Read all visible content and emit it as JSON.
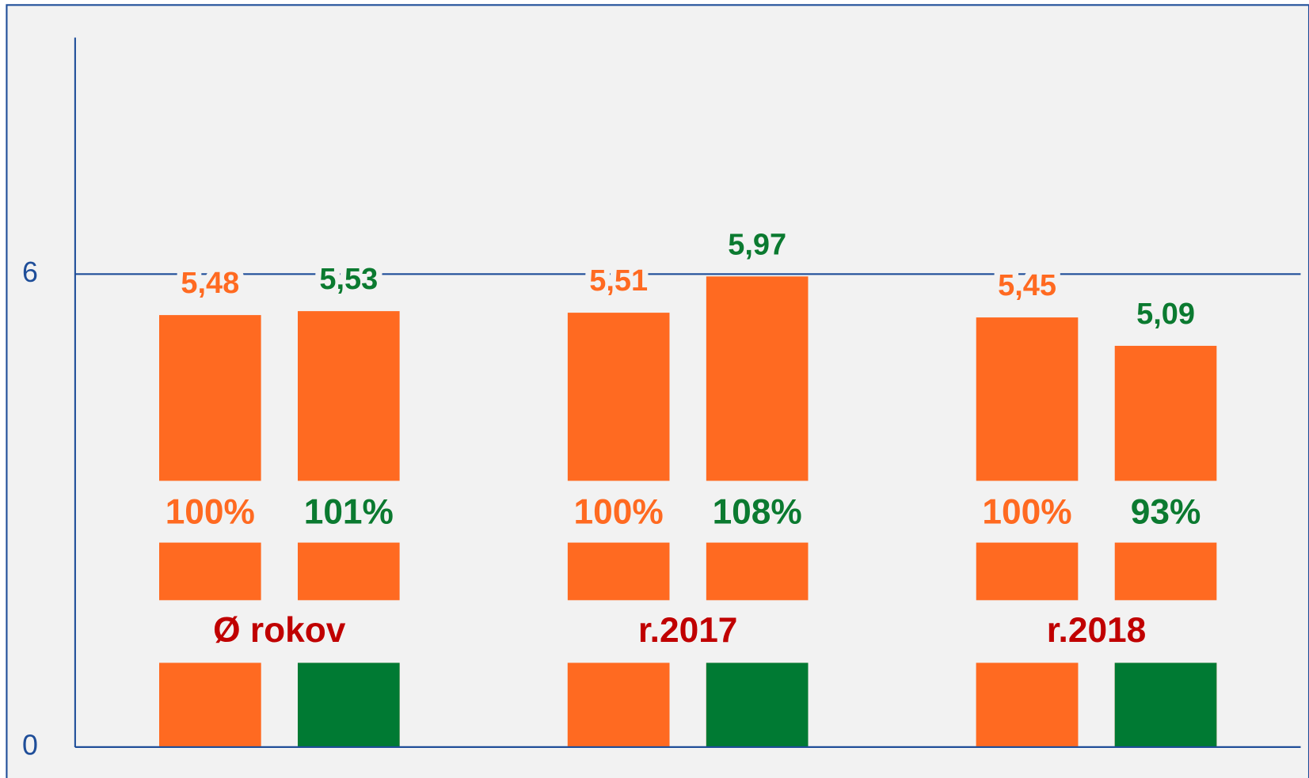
{
  "chart_data": {
    "type": "bar",
    "categories": [
      "Ø rokov",
      "r.2017",
      "r.2018"
    ],
    "series": [
      {
        "color": "#ff6a21",
        "label_color": "#ff6a21",
        "values": [
          5.48,
          5.51,
          5.45
        ],
        "value_labels": [
          "5,48",
          "5,51",
          "5,45"
        ],
        "percent_labels": [
          "100%",
          "100%",
          "100%"
        ]
      },
      {
        "color": "#007a33",
        "label_color": "#0b7a30",
        "bar_color": "#ff6a21",
        "values": [
          5.53,
          5.97,
          5.09
        ],
        "value_labels": [
          "5,53",
          "5,97",
          "5,09"
        ],
        "percent_labels": [
          "101%",
          "108%",
          "93%"
        ]
      }
    ],
    "ylim": [
      0,
      9
    ],
    "yticks": [
      0,
      6
    ],
    "grid": true
  }
}
